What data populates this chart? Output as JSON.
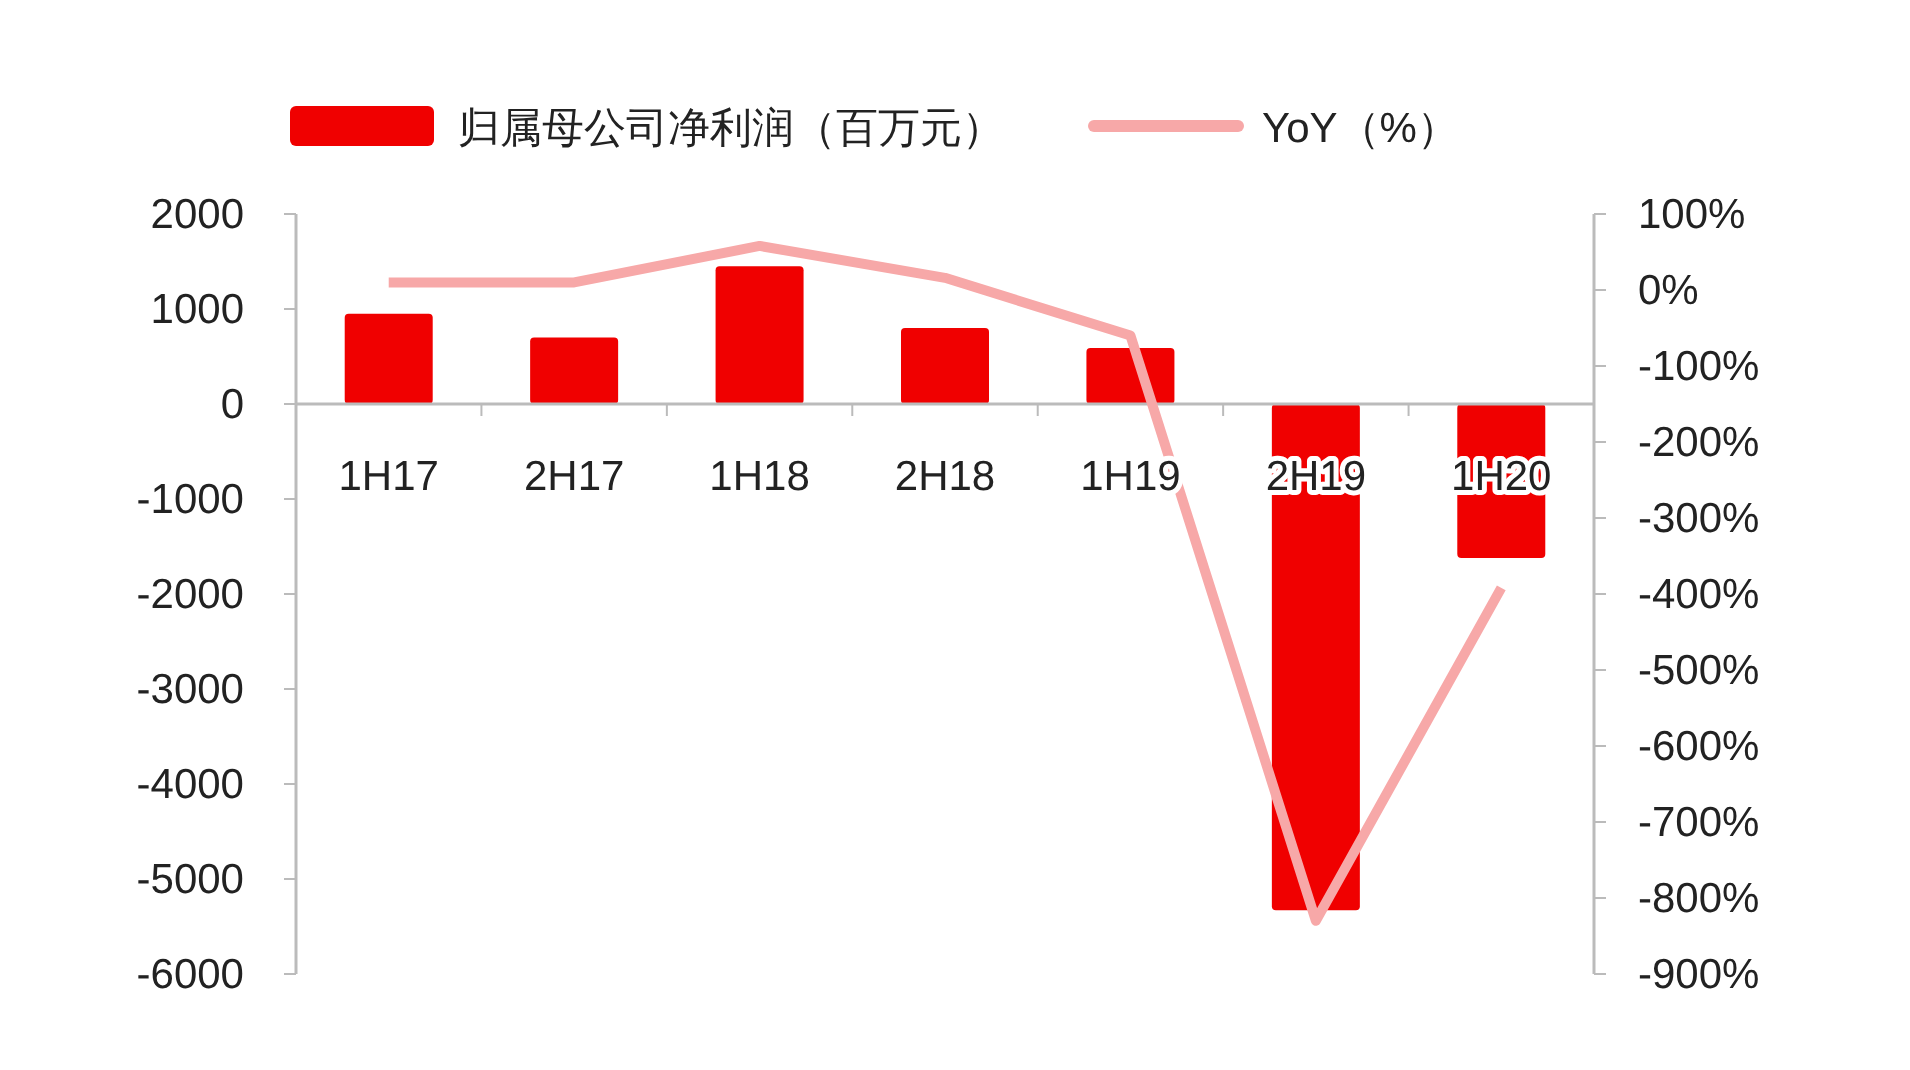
{
  "chart_data": {
    "type": "bar",
    "categories": [
      "1H17",
      "2H17",
      "1H18",
      "2H18",
      "1H19",
      "2H19",
      "1H20"
    ],
    "series": [
      {
        "name": "归属母公司净利润（百万元）",
        "color": "#f00000",
        "values": [
          950,
          700,
          1450,
          800,
          590,
          -5330,
          -1620
        ]
      },
      {
        "name": "YoY（%）",
        "type": "line",
        "axis": "y2",
        "color": "#f7a8a8",
        "values": [
          10,
          10,
          58,
          16,
          -60,
          -830,
          -392
        ]
      }
    ],
    "ylim": [
      -6000,
      2000
    ],
    "yticks": [
      -6000,
      -5000,
      -4000,
      -3000,
      -2000,
      -1000,
      0,
      1000,
      2000
    ],
    "y2lim": [
      -900,
      100
    ],
    "y2ticks": [
      {
        "value": -900,
        "label": "-900%"
      },
      {
        "value": -800,
        "label": "-800%"
      },
      {
        "value": -700,
        "label": "-700%"
      },
      {
        "value": -600,
        "label": "-600%"
      },
      {
        "value": -500,
        "label": "-500%"
      },
      {
        "value": -400,
        "label": "-400%"
      },
      {
        "value": -300,
        "label": "-300%"
      },
      {
        "value": -200,
        "label": "-200%"
      },
      {
        "value": -100,
        "label": "-100%"
      },
      {
        "value": 0,
        "label": "0%"
      },
      {
        "value": 100,
        "label": "100%"
      }
    ],
    "legend": "top",
    "grid": false,
    "line_style": "solid"
  }
}
